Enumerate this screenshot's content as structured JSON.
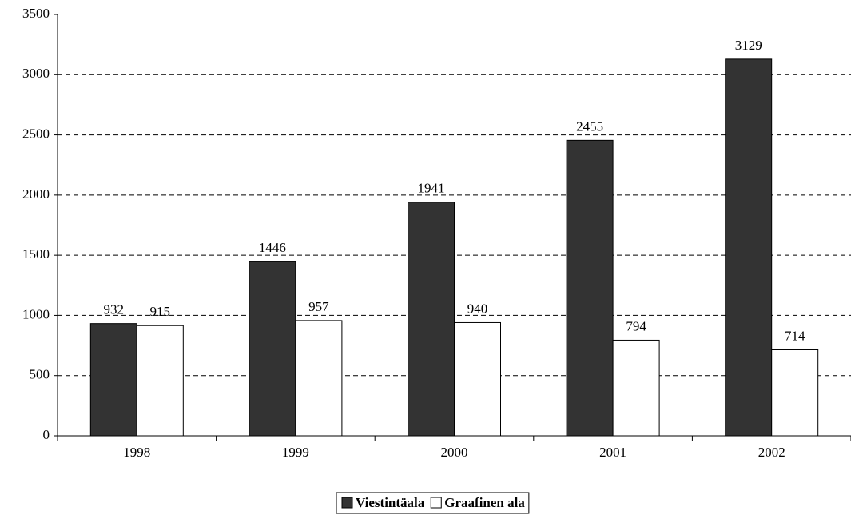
{
  "chart_data": {
    "type": "bar",
    "categories": [
      "1998",
      "1999",
      "2000",
      "2001",
      "2002"
    ],
    "series": [
      {
        "name": "Viestintäala",
        "color": "#333333",
        "values": [
          932,
          1446,
          1941,
          2455,
          3129
        ]
      },
      {
        "name": "Graafinen ala",
        "color": "#ffffff",
        "values": [
          915,
          957,
          940,
          794,
          714
        ]
      }
    ],
    "ylim": [
      0,
      3500
    ],
    "yticks": [
      0,
      500,
      1000,
      1500,
      2000,
      2500,
      3000,
      3500
    ],
    "grid": true,
    "legend": "bottom"
  }
}
